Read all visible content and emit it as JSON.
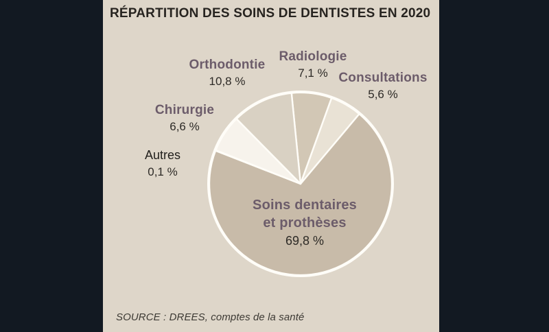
{
  "page": {
    "background_color": "#121922",
    "card_background_color": "#ded6c9"
  },
  "header": {
    "title": "RÉPARTITION DES SOINS DE DENTISTES EN 2020"
  },
  "footer": {
    "source": "SOURCE : DREES, comptes de la santé"
  },
  "chart_data": {
    "type": "pie",
    "title": "RÉPARTITION DES SOINS DE DENTISTES EN 2020",
    "unit": "%",
    "direction": "clockwise",
    "start_angle_deg": -5.7,
    "legend": "none, labels placed around and inside the pie",
    "ring_color": "#fffdf8",
    "label_name_color": "#6c5c6a",
    "label_value_color": "#2d2a26",
    "slices": [
      {
        "id": "radiologie",
        "label": "Radiologie",
        "value": 7.1,
        "display_value": "7,1 %",
        "color": "#d2c7b5"
      },
      {
        "id": "consultations",
        "label": "Consultations",
        "value": 5.6,
        "display_value": "5,6 %",
        "color": "#e9e2d5"
      },
      {
        "id": "soins",
        "label": "Soins dentaires et prothèses",
        "label_line1": "Soins dentaires",
        "label_line2": "et prothèses",
        "value": 69.8,
        "display_value": "69,8 %",
        "color": "#c8bba9"
      },
      {
        "id": "autres",
        "label": "Autres",
        "value": 0.1,
        "display_value": "0,1 %",
        "color": "#ffffff"
      },
      {
        "id": "chirurgie",
        "label": "Chirurgie",
        "value": 6.6,
        "display_value": "6,6 %",
        "color": "#f7f3ec"
      },
      {
        "id": "orthodontie",
        "label": "Orthodontie",
        "value": 10.8,
        "display_value": "10,8 %",
        "color": "#d9d1c3"
      }
    ]
  }
}
